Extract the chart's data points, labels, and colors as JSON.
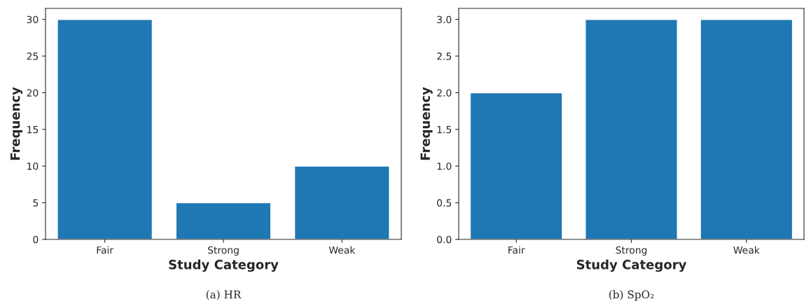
{
  "chart_data": [
    {
      "type": "bar",
      "xlabel": "Study Category",
      "ylabel": "Frequency",
      "categories": [
        "Fair",
        "Strong",
        "Weak"
      ],
      "values": [
        30,
        5,
        10
      ],
      "color": "#1f77b4",
      "ylim": [
        0,
        31.5
      ],
      "yticks": [
        0,
        5,
        10,
        15,
        20,
        25,
        30
      ],
      "grid": false,
      "annotations": [
        "(a) HR"
      ]
    },
    {
      "type": "bar",
      "xlabel": "Study Category",
      "ylabel": "Frequency",
      "categories": [
        "Fair",
        "Strong",
        "Weak"
      ],
      "values": [
        2,
        3,
        3
      ],
      "color": "#1f77b4",
      "ylim": [
        0,
        3.15
      ],
      "yticks": [
        {
          "value": 0,
          "label": "0.0"
        },
        {
          "value": 0.5,
          "label": "0.5"
        },
        {
          "value": 1,
          "label": "1.0"
        },
        {
          "value": 1.5,
          "label": "1.5"
        },
        {
          "value": 2,
          "label": "2.0"
        },
        {
          "value": 2.5,
          "label": "2.5"
        },
        {
          "value": 3,
          "label": "3.0"
        }
      ],
      "grid": false,
      "annotations": [
        "(b) SpO₂"
      ]
    }
  ]
}
